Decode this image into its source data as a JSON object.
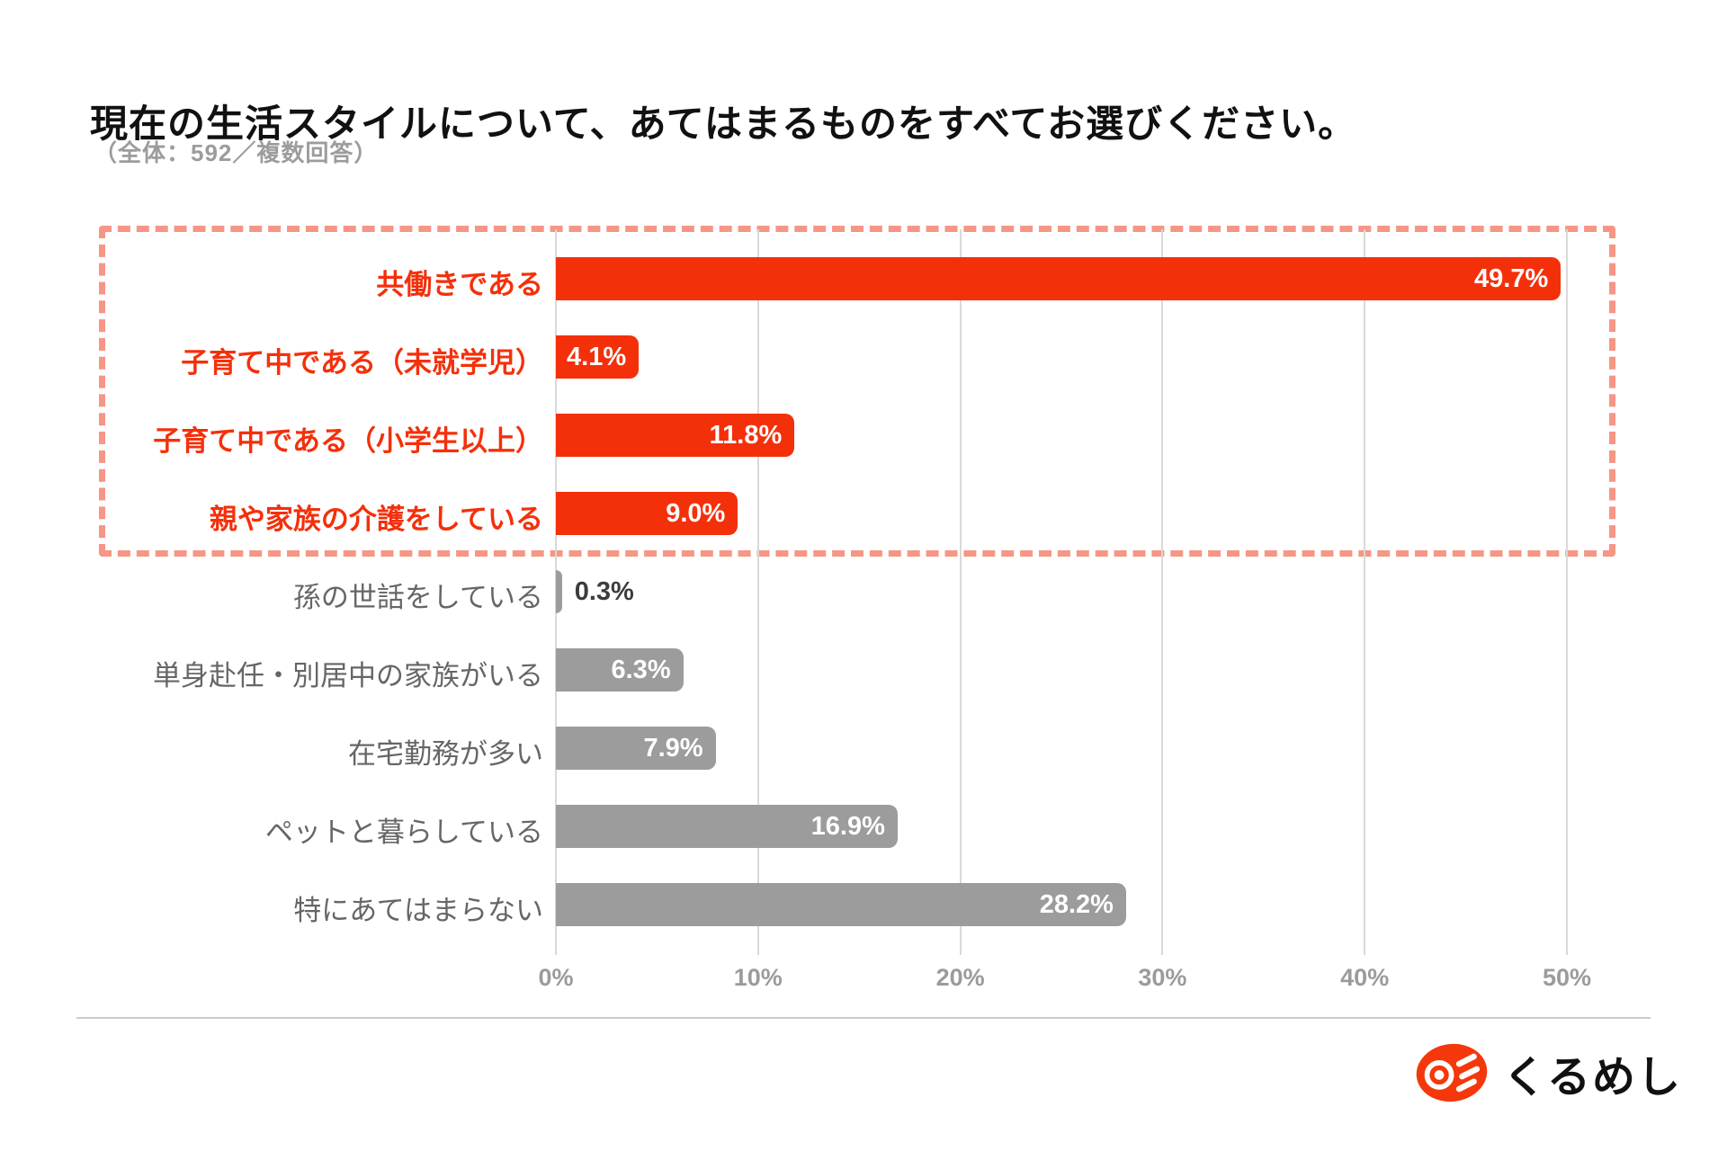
{
  "header": {
    "title": "現在の生活スタイルについて、あてはまるものをすべてお選びください。",
    "subtitle": "（全体：592／複数回答）"
  },
  "chart_data": {
    "type": "bar",
    "orientation": "horizontal",
    "title": "現在の生活スタイルについて、あてはまるものをすべてお選びください。",
    "sample_note": "（全体：592／複数回答）",
    "xlim": [
      0,
      50
    ],
    "x_ticks": [
      "0%",
      "10%",
      "20%",
      "30%",
      "40%",
      "50%"
    ],
    "grid": true,
    "rows": [
      {
        "label": "共働きである",
        "value": 49.7,
        "display": "49.7%",
        "highlight": true,
        "value_inside": true
      },
      {
        "label": "子育て中である（未就学児）",
        "value": 4.1,
        "display": "4.1%",
        "highlight": true,
        "value_inside": true
      },
      {
        "label": "子育て中である（小学生以上）",
        "value": 11.8,
        "display": "11.8%",
        "highlight": true,
        "value_inside": true
      },
      {
        "label": "親や家族の介護をしている",
        "value": 9.0,
        "display": "9.0%",
        "highlight": true,
        "value_inside": true
      },
      {
        "label": "孫の世話をしている",
        "value": 0.3,
        "display": "0.3%",
        "highlight": false,
        "value_inside": false
      },
      {
        "label": "単身赴任・別居中の家族がいる",
        "value": 6.3,
        "display": "6.3%",
        "highlight": false,
        "value_inside": true
      },
      {
        "label": "在宅勤務が多い",
        "value": 7.9,
        "display": "7.9%",
        "highlight": false,
        "value_inside": true
      },
      {
        "label": "ペットと暮らしている",
        "value": 16.9,
        "display": "16.9%",
        "highlight": false,
        "value_inside": true
      },
      {
        "label": "特にあてはまらない",
        "value": 28.2,
        "display": "28.2%",
        "highlight": false,
        "value_inside": true
      }
    ],
    "colors": {
      "highlight_bar": "#f4300b",
      "normal_bar": "#9c9c9c",
      "highlight_label": "#f4300b",
      "normal_label": "#666666",
      "value_in": "#ffffff",
      "value_out": "#3c3c3c",
      "dashed_box": "#f69685",
      "gridline": "#d9d9d9",
      "tick": "#9b9b9b"
    },
    "legend": null
  },
  "footer": {
    "logo_text": "くるめし"
  }
}
